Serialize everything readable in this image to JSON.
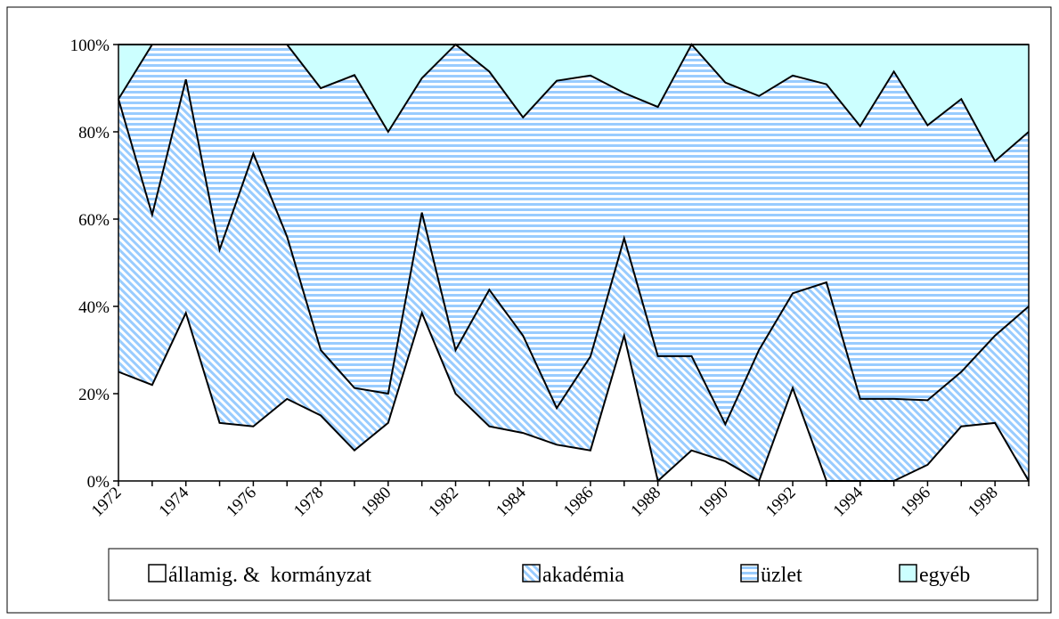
{
  "chart_data": {
    "type": "stacked_area",
    "categories": [
      "1972",
      null,
      "1974",
      null,
      "1976",
      null,
      "1978",
      null,
      "1980",
      null,
      "1982",
      null,
      "1984",
      null,
      "1986",
      null,
      "1988",
      null,
      "1990",
      null,
      "1992",
      null,
      "1994",
      null,
      "1996",
      null,
      "1998",
      null
    ],
    "series": [
      {
        "name": "államig. &  kormányzat",
        "color": "#ffffff",
        "pattern": "none",
        "values": [
          25,
          22,
          38.5,
          13.3,
          12.5,
          18.8,
          15,
          7,
          13.3,
          38.5,
          20,
          12.5,
          11,
          8.3,
          7,
          33.3,
          0,
          7,
          4.5,
          0,
          21.3,
          0,
          0,
          0,
          3.7,
          12.5,
          13.3,
          0
        ]
      },
      {
        "name": "akadémia",
        "color": "#99ccff",
        "pattern": "diagonal",
        "values": [
          62.5,
          39,
          53.5,
          39.7,
          62.5,
          37.2,
          15,
          14.3,
          6.7,
          23,
          10,
          31.3,
          22.3,
          8.4,
          21.5,
          22.3,
          28.6,
          21.6,
          8.5,
          30,
          21.7,
          45.5,
          18.8,
          18.8,
          14.8,
          12.5,
          20,
          40
        ]
      },
      {
        "name": "üzlet",
        "color": "#99ccff",
        "pattern": "horizontal",
        "values": [
          0,
          39,
          8,
          47,
          25,
          44,
          60,
          71.7,
          60,
          30.8,
          70,
          50,
          50,
          75,
          64.4,
          33.3,
          57.1,
          71.4,
          78.3,
          58.2,
          49.9,
          45.4,
          62.5,
          75,
          63,
          62.5,
          40,
          40
        ]
      },
      {
        "name": "egyéb",
        "color": "#ccffff",
        "pattern": "none",
        "values": [
          12.5,
          0,
          0,
          0,
          0,
          0,
          10,
          7,
          20,
          7.7,
          0,
          6.2,
          16.7,
          8.3,
          7.1,
          11.1,
          14.3,
          0,
          8.7,
          11.8,
          7.1,
          9.1,
          18.7,
          6.2,
          18.5,
          12.5,
          26.7,
          20
        ]
      }
    ],
    "ylim": [
      0,
      100
    ],
    "yticks": [
      {
        "value": 0,
        "label": "0%"
      },
      {
        "value": 20,
        "label": "20%"
      },
      {
        "value": 40,
        "label": "40%"
      },
      {
        "value": 60,
        "label": "60%"
      },
      {
        "value": 80,
        "label": "80%"
      },
      {
        "value": 100,
        "label": "100%"
      }
    ],
    "legend": "bottom"
  }
}
